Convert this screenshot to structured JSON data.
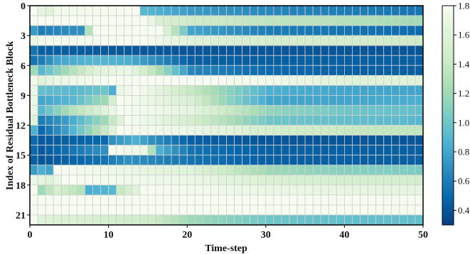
{
  "chart_data": {
    "type": "heatmap",
    "xlabel": "Time-step",
    "ylabel": "Index of Residual Bottleneck Block",
    "x_ticks": [
      "0",
      "10",
      "20",
      "30",
      "40",
      "50"
    ],
    "y_ticks": [
      "0",
      "3",
      "6",
      "9",
      "12",
      "15",
      "18",
      "21"
    ],
    "xlim": [
      0,
      50
    ],
    "ylim": [
      0,
      22
    ],
    "n_cols": 50,
    "n_rows": 22,
    "colorbar": {
      "min": 0.3,
      "max": 1.8,
      "ticks": [
        "1.8",
        "1.6",
        "1.4",
        "1.2",
        "1.0",
        "0.8",
        "0.6",
        "0.4"
      ],
      "colormap": "GnBu",
      "stops": [
        "#f7fcf0",
        "#e0f3db",
        "#ccebc5",
        "#a8ddb5",
        "#7bccc4",
        "#4eb3d3",
        "#2b8cbe",
        "#0868ac",
        "#084081"
      ]
    },
    "row_profiles": [
      {
        "row": 0,
        "points": [
          [
            0,
            1.8
          ],
          [
            1,
            1.65
          ],
          [
            2,
            1.6
          ],
          [
            3,
            1.75
          ],
          [
            13,
            1.8
          ],
          [
            14,
            0.9
          ],
          [
            20,
            0.75
          ],
          [
            30,
            0.65
          ],
          [
            40,
            0.6
          ],
          [
            50,
            0.55
          ]
        ]
      },
      {
        "row": 1,
        "points": [
          [
            0,
            1.8
          ],
          [
            14,
            1.8
          ],
          [
            16,
            1.55
          ],
          [
            20,
            1.45
          ],
          [
            30,
            1.35
          ],
          [
            40,
            1.3
          ],
          [
            50,
            1.2
          ]
        ]
      },
      {
        "row": 2,
        "points": [
          [
            0,
            0.75
          ],
          [
            1,
            0.6
          ],
          [
            3,
            0.65
          ],
          [
            6,
            0.7
          ],
          [
            7,
            1.3
          ],
          [
            8,
            1.8
          ],
          [
            16,
            1.8
          ],
          [
            18,
            1.3
          ],
          [
            20,
            0.8
          ],
          [
            30,
            0.6
          ],
          [
            40,
            0.55
          ],
          [
            50,
            0.5
          ]
        ]
      },
      {
        "row": 3,
        "points": [
          [
            0,
            1.7
          ],
          [
            1,
            1.75
          ],
          [
            14,
            1.8
          ],
          [
            20,
            1.6
          ],
          [
            30,
            1.5
          ],
          [
            40,
            1.5
          ],
          [
            50,
            1.45
          ]
        ]
      },
      {
        "row": 4,
        "points": [
          [
            0,
            0.55
          ],
          [
            1,
            0.45
          ],
          [
            10,
            0.42
          ],
          [
            20,
            0.4
          ],
          [
            30,
            0.4
          ],
          [
            40,
            0.4
          ],
          [
            50,
            0.4
          ]
        ]
      },
      {
        "row": 5,
        "points": [
          [
            0,
            0.55
          ],
          [
            1,
            0.6
          ],
          [
            3,
            0.8
          ],
          [
            8,
            0.9
          ],
          [
            12,
            0.85
          ],
          [
            20,
            0.45
          ],
          [
            30,
            0.45
          ],
          [
            40,
            0.45
          ],
          [
            50,
            0.45
          ]
        ]
      },
      {
        "row": 6,
        "points": [
          [
            0,
            1.2
          ],
          [
            1,
            0.9
          ],
          [
            3,
            1.1
          ],
          [
            8,
            1.6
          ],
          [
            12,
            1.7
          ],
          [
            14,
            1.5
          ],
          [
            17,
            1.1
          ],
          [
            20,
            0.65
          ],
          [
            30,
            0.5
          ],
          [
            40,
            0.45
          ],
          [
            50,
            0.45
          ]
        ]
      },
      {
        "row": 7,
        "points": [
          [
            0,
            1.75
          ],
          [
            1,
            1.6
          ],
          [
            3,
            1.7
          ],
          [
            10,
            1.8
          ],
          [
            20,
            1.8
          ],
          [
            30,
            1.75
          ],
          [
            40,
            1.6
          ],
          [
            50,
            1.6
          ]
        ]
      },
      {
        "row": 8,
        "points": [
          [
            0,
            1.7
          ],
          [
            1,
            0.95
          ],
          [
            5,
            0.9
          ],
          [
            9,
            1.0
          ],
          [
            10,
            0.85
          ],
          [
            11,
            1.7
          ],
          [
            13,
            1.8
          ],
          [
            20,
            1.4
          ],
          [
            25,
            1.1
          ],
          [
            30,
            0.85
          ],
          [
            40,
            0.8
          ],
          [
            50,
            0.8
          ]
        ]
      },
      {
        "row": 9,
        "points": [
          [
            0,
            1.7
          ],
          [
            1,
            0.8
          ],
          [
            5,
            0.9
          ],
          [
            9,
            1.2
          ],
          [
            11,
            1.8
          ],
          [
            20,
            1.55
          ],
          [
            25,
            1.1
          ],
          [
            30,
            0.8
          ],
          [
            40,
            0.8
          ],
          [
            50,
            0.85
          ]
        ]
      },
      {
        "row": 10,
        "points": [
          [
            0,
            1.7
          ],
          [
            1,
            0.9
          ],
          [
            5,
            1.3
          ],
          [
            9,
            1.6
          ],
          [
            11,
            1.8
          ],
          [
            20,
            1.65
          ],
          [
            25,
            1.4
          ],
          [
            30,
            1.15
          ],
          [
            40,
            1.0
          ],
          [
            50,
            0.95
          ]
        ]
      },
      {
        "row": 11,
        "points": [
          [
            0,
            1.6
          ],
          [
            1,
            0.6
          ],
          [
            4,
            0.75
          ],
          [
            9,
            1.2
          ],
          [
            12,
            1.8
          ],
          [
            20,
            1.5
          ],
          [
            25,
            1.25
          ],
          [
            30,
            1.0
          ],
          [
            40,
            0.95
          ],
          [
            50,
            0.9
          ]
        ]
      },
      {
        "row": 12,
        "points": [
          [
            0,
            0.85
          ],
          [
            1,
            0.5
          ],
          [
            4,
            0.75
          ],
          [
            9,
            1.4
          ],
          [
            11,
            1.8
          ],
          [
            20,
            1.7
          ],
          [
            30,
            1.5
          ],
          [
            40,
            1.4
          ],
          [
            50,
            1.35
          ]
        ]
      },
      {
        "row": 13,
        "points": [
          [
            0,
            0.5
          ],
          [
            1,
            0.42
          ],
          [
            9,
            0.5
          ],
          [
            10,
            0.7
          ],
          [
            13,
            0.85
          ],
          [
            15,
            0.7
          ],
          [
            20,
            0.45
          ],
          [
            30,
            0.4
          ],
          [
            40,
            0.4
          ],
          [
            50,
            0.4
          ]
        ]
      },
      {
        "row": 14,
        "points": [
          [
            0,
            0.5
          ],
          [
            1,
            0.42
          ],
          [
            9,
            0.7
          ],
          [
            10,
            1.8
          ],
          [
            14,
            1.7
          ],
          [
            16,
            0.85
          ],
          [
            20,
            0.55
          ],
          [
            30,
            0.45
          ],
          [
            40,
            0.45
          ],
          [
            50,
            0.45
          ]
        ]
      },
      {
        "row": 15,
        "points": [
          [
            0,
            0.45
          ],
          [
            1,
            0.4
          ],
          [
            9,
            0.55
          ],
          [
            12,
            0.7
          ],
          [
            20,
            0.55
          ],
          [
            30,
            0.45
          ],
          [
            40,
            0.45
          ],
          [
            50,
            0.45
          ]
        ]
      },
      {
        "row": 16,
        "points": [
          [
            0,
            0.75
          ],
          [
            1,
            0.85
          ],
          [
            2,
            0.8
          ],
          [
            3,
            1.8
          ],
          [
            20,
            1.6
          ],
          [
            30,
            1.2
          ],
          [
            40,
            1.1
          ],
          [
            50,
            1.05
          ]
        ]
      },
      {
        "row": 17,
        "points": [
          [
            0,
            1.7
          ],
          [
            2,
            1.6
          ],
          [
            4,
            1.8
          ],
          [
            20,
            1.7
          ],
          [
            30,
            1.55
          ],
          [
            40,
            1.5
          ],
          [
            50,
            1.5
          ]
        ]
      },
      {
        "row": 18,
        "points": [
          [
            0,
            1.8
          ],
          [
            1,
            1.2
          ],
          [
            3,
            1.5
          ],
          [
            6,
            1.3
          ],
          [
            7,
            0.85
          ],
          [
            10,
            0.9
          ],
          [
            11,
            1.4
          ],
          [
            13,
            1.6
          ],
          [
            14,
            1.8
          ],
          [
            30,
            1.7
          ],
          [
            50,
            1.65
          ]
        ]
      },
      {
        "row": 19,
        "points": [
          [
            0,
            1.8
          ],
          [
            20,
            1.8
          ],
          [
            50,
            1.78
          ]
        ]
      },
      {
        "row": 20,
        "points": [
          [
            0,
            1.8
          ],
          [
            20,
            1.8
          ],
          [
            50,
            1.8
          ]
        ]
      },
      {
        "row": 21,
        "points": [
          [
            0,
            1.8
          ],
          [
            1,
            1.6
          ],
          [
            15,
            1.45
          ],
          [
            20,
            1.2
          ],
          [
            30,
            1.0
          ],
          [
            40,
            0.95
          ],
          [
            50,
            0.95
          ]
        ]
      }
    ]
  }
}
